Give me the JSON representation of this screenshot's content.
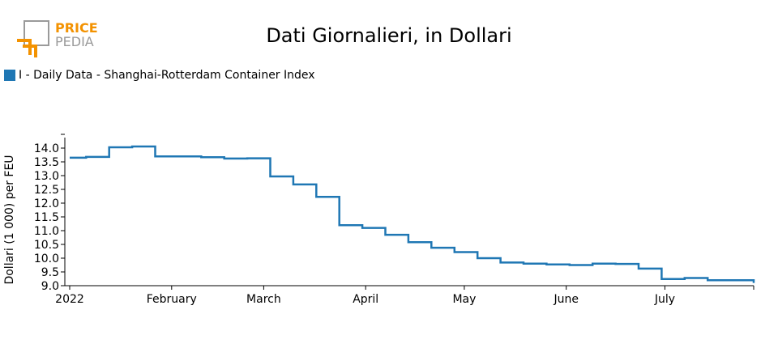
{
  "logo": {
    "word1": "PRICE",
    "word2": "PEDIA",
    "primary_color": "#f39200",
    "secondary_color": "#9a9a9a"
  },
  "chart_data": {
    "type": "line",
    "title": "Dati Giornalieri, in Dollari",
    "xlabel": "",
    "ylabel": "Dollari (1 000) per FEU",
    "ylim": [
      9.0,
      14.0
    ],
    "xlim": [
      "2022-01-01",
      "2022-07-28"
    ],
    "legend_position": "top-left",
    "grid": false,
    "x_tick_labels": [
      {
        "date": "2022-01-01",
        "label": "2022"
      },
      {
        "date": "2022-02-01",
        "label": "February"
      },
      {
        "date": "2022-03-01",
        "label": "March"
      },
      {
        "date": "2022-04-01",
        "label": "April"
      },
      {
        "date": "2022-05-01",
        "label": "May"
      },
      {
        "date": "2022-06-01",
        "label": "June"
      },
      {
        "date": "2022-07-01",
        "label": "July"
      }
    ],
    "y_ticks": [
      9.0,
      9.5,
      10.0,
      10.5,
      11.0,
      11.5,
      12.0,
      12.5,
      13.0,
      13.5,
      14.0,
      14.5
    ],
    "y_tick_labels": [
      "9.0",
      "9.5",
      "10.0",
      "10.5",
      "11.0",
      "11.5",
      "12.0",
      "12.5",
      "13.0",
      "13.5",
      "14.0",
      ""
    ],
    "series": [
      {
        "name": "I - Daily Data - Shanghai-Rotterdam Container Index",
        "color": "#1f77b4",
        "step": true,
        "x": [
          "2022-01-01",
          "2022-01-06",
          "2022-01-13",
          "2022-01-20",
          "2022-01-27",
          "2022-02-03",
          "2022-02-10",
          "2022-02-17",
          "2022-02-24",
          "2022-03-03",
          "2022-03-10",
          "2022-03-17",
          "2022-03-24",
          "2022-03-31",
          "2022-04-07",
          "2022-04-14",
          "2022-04-21",
          "2022-04-28",
          "2022-05-05",
          "2022-05-12",
          "2022-05-19",
          "2022-05-26",
          "2022-06-02",
          "2022-06-09",
          "2022-06-16",
          "2022-06-23",
          "2022-06-30",
          "2022-07-07",
          "2022-07-14",
          "2022-07-21",
          "2022-07-28"
        ],
        "values": [
          13.65,
          13.68,
          14.03,
          14.06,
          13.7,
          13.7,
          13.67,
          13.62,
          13.63,
          12.97,
          12.68,
          12.23,
          11.2,
          11.1,
          10.85,
          10.58,
          10.38,
          10.22,
          10.0,
          9.84,
          9.8,
          9.77,
          9.75,
          9.8,
          9.79,
          9.62,
          9.24,
          9.28,
          9.2,
          9.2,
          9.1
        ]
      }
    ]
  }
}
